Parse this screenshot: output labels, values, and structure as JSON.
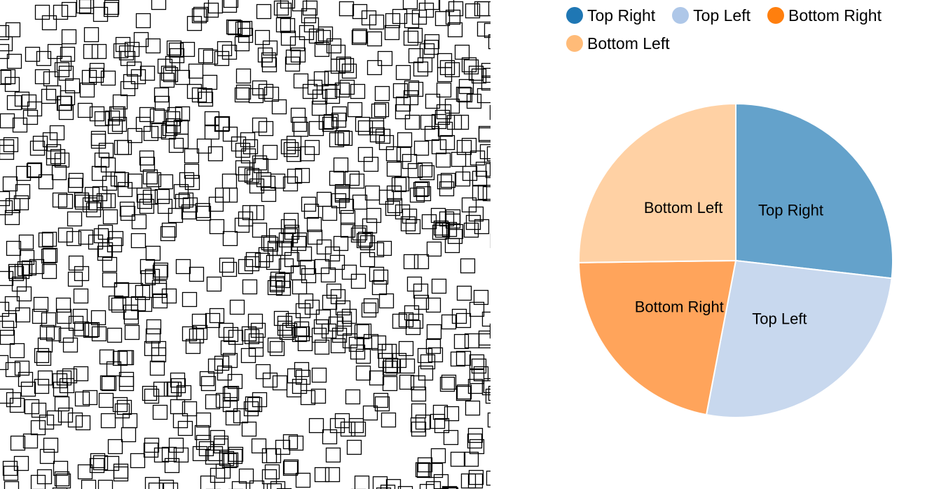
{
  "chart_data": [
    {
      "type": "scatter",
      "title": "",
      "xlabel": "",
      "ylabel": "",
      "grid": false,
      "marker": "open-square",
      "marker_color": "#000000",
      "approx_point_count": 1000
    },
    {
      "type": "pie",
      "title": "",
      "categories": [
        "Top Right",
        "Top Left",
        "Bottom Right",
        "Bottom Left"
      ],
      "values": [
        26.8,
        26.2,
        21.8,
        25.2
      ],
      "value_unit": "percent",
      "legend_placement": "top",
      "colors": {
        "legend": [
          "#1f77b4",
          "#aec7e8",
          "#ff7f0e",
          "#ffbb78"
        ],
        "slices": [
          "#64a2cb",
          "#c8d8ee",
          "#ffa45b",
          "#ffd1a4"
        ]
      },
      "labels": [
        "Top Right",
        "Top Left",
        "Bottom Right",
        "Bottom Left"
      ]
    }
  ]
}
